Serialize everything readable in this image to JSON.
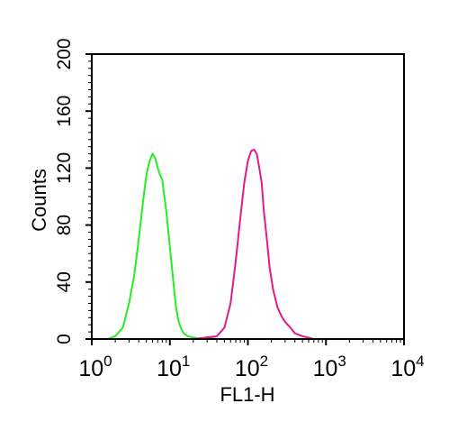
{
  "chart_data": {
    "type": "line",
    "xlabel": "FL1-H",
    "ylabel": "Counts",
    "x_scale": "log",
    "xlim": [
      1,
      10000
    ],
    "ylim": [
      0,
      200
    ],
    "x_ticks": [
      {
        "base": "10",
        "exp": "0",
        "value": 1
      },
      {
        "base": "10",
        "exp": "1",
        "value": 10
      },
      {
        "base": "10",
        "exp": "2",
        "value": 100
      },
      {
        "base": "10",
        "exp": "3",
        "value": 1000
      },
      {
        "base": "10",
        "exp": "4",
        "value": 10000
      }
    ],
    "y_ticks": [
      "0",
      "40",
      "80",
      "120",
      "160",
      "200"
    ],
    "y_tick_values": [
      0,
      40,
      80,
      120,
      160,
      200
    ],
    "grid": false,
    "legend": "none",
    "series": [
      {
        "color": "#22ee22",
        "x": [
          1.6,
          2.0,
          2.5,
          3.0,
          3.5,
          4.0,
          4.5,
          5.0,
          5.5,
          6.0,
          6.5,
          7.0,
          7.5,
          8.0,
          8.5,
          9.0,
          10.0,
          11.0,
          12.0,
          13.0,
          14.0,
          15.0,
          17.0,
          20.0,
          25.0,
          30.0,
          40.0,
          60.0,
          100.0,
          200.0,
          400.0,
          1000.0,
          10000.0
        ],
        "y": [
          0,
          2,
          8,
          25,
          45,
          70,
          95,
          115,
          125,
          130,
          127,
          120,
          115,
          112,
          100,
          90,
          65,
          42,
          22,
          12,
          7,
          4,
          2,
          1,
          0,
          1,
          0,
          0,
          0,
          0,
          0,
          0,
          0
        ]
      },
      {
        "color": "#e4198a",
        "x": [
          1.0,
          20.0,
          40.0,
          50.0,
          60.0,
          70.0,
          80.0,
          90.0,
          100.0,
          110.0,
          120.0,
          130.0,
          140.0,
          150.0,
          160.0,
          175.0,
          190.0,
          210.0,
          240.0,
          270.0,
          300.0,
          350.0,
          400.0,
          500.0,
          600.0,
          700.0,
          1000.0,
          10000.0
        ],
        "y": [
          0,
          0,
          2,
          8,
          25,
          55,
          85,
          110,
          125,
          132,
          133,
          130,
          120,
          110,
          90,
          70,
          50,
          35,
          22,
          16,
          12,
          8,
          4,
          2,
          1,
          0,
          0,
          0
        ]
      }
    ]
  }
}
